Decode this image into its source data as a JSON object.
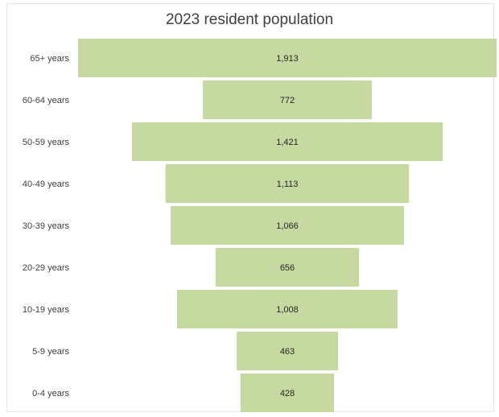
{
  "chart_data": {
    "type": "bar",
    "orientation": "horizontal",
    "style": "funnel-centered",
    "title": "2023 resident population",
    "xlabel": "",
    "ylabel": "",
    "grid": false,
    "legend": "none",
    "bar_color": "#c5d9a0",
    "categories": [
      "65+ years",
      "60-64 years",
      "50-59 years",
      "40-49 years",
      "30-39 years",
      "20-29 years",
      "10-19 years",
      "5-9 years",
      "0-4 years"
    ],
    "values": [
      1913,
      772,
      1421,
      1113,
      1066,
      656,
      1008,
      463,
      428
    ],
    "data_labels": [
      "1,913",
      "772",
      "1,421",
      "1,113",
      "1,066",
      "656",
      "1,008",
      "463",
      "428"
    ]
  }
}
